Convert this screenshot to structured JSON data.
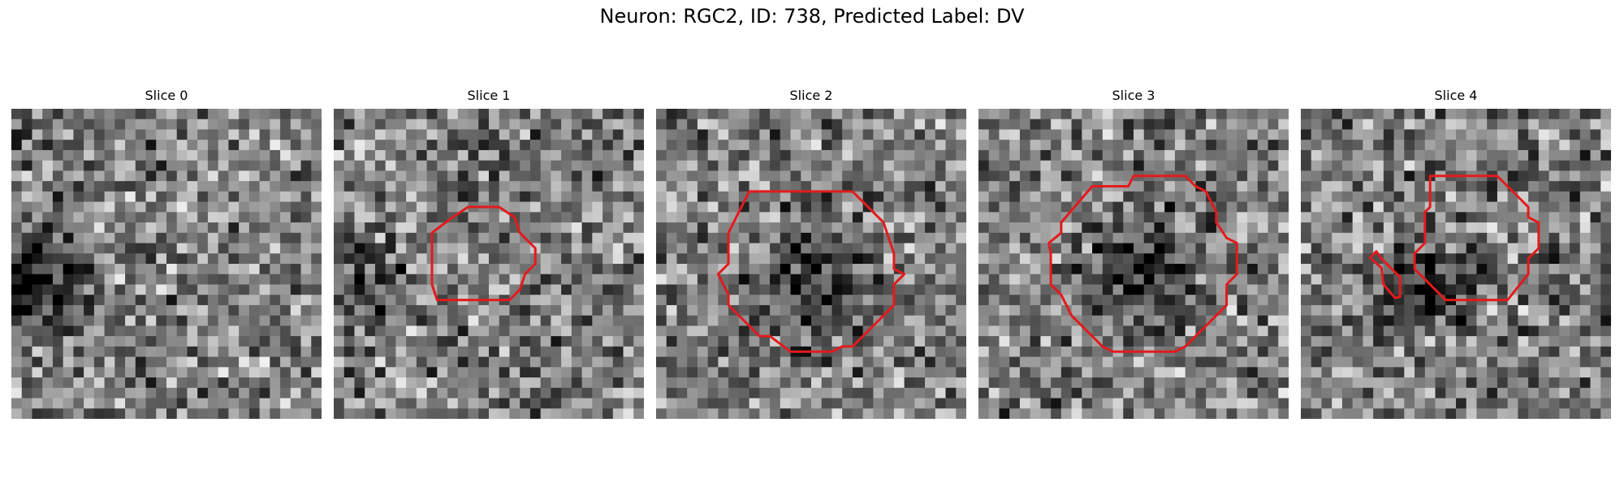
{
  "figure": {
    "title": "Neuron: RGC2, ID: 738, Predicted Label: DV",
    "outline_color": "#e41a1c",
    "grid_size": 30,
    "panels": [
      {
        "title": "Slice 0",
        "seed": 11,
        "dark_blob": {
          "cx": 2,
          "cy": 16,
          "r": 7,
          "depth": 0.45
        },
        "contours": []
      },
      {
        "title": "Slice 1",
        "seed": 23,
        "dark_blob": {
          "cx": 2,
          "cy": 16,
          "r": 6,
          "depth": 0.3
        },
        "contours": [
          [
            [
              11.5,
              10.5
            ],
            [
              13,
              9.5
            ],
            [
              16,
              9.5
            ],
            [
              17.5,
              10.5
            ],
            [
              18,
              12
            ],
            [
              19.5,
              13.5
            ],
            [
              19.5,
              15
            ],
            [
              18.5,
              16
            ],
            [
              18,
              17.5
            ],
            [
              17,
              18.5
            ],
            [
              10,
              18.5
            ],
            [
              9.5,
              17
            ],
            [
              9.5,
              12
            ]
          ]
        ]
      },
      {
        "title": "Slice 2",
        "seed": 37,
        "dark_blob": {
          "cx": 14.5,
          "cy": 16,
          "r": 8,
          "depth": 0.35
        },
        "contours": [
          [
            [
              9,
              8
            ],
            [
              19,
              8
            ],
            [
              20,
              9
            ],
            [
              22,
              11
            ],
            [
              23,
              14
            ],
            [
              23,
              15.5
            ],
            [
              24,
              16
            ],
            [
              23,
              17
            ],
            [
              23,
              19
            ],
            [
              19,
              23
            ],
            [
              18,
              23
            ],
            [
              17,
              23.5
            ],
            [
              13,
              23.5
            ],
            [
              11,
              22
            ],
            [
              10,
              22
            ],
            [
              8,
              20
            ],
            [
              7,
              19
            ],
            [
              7,
              18
            ],
            [
              6,
              16
            ],
            [
              7,
              15
            ],
            [
              7,
              12
            ]
          ]
        ]
      },
      {
        "title": "Slice 3",
        "seed": 51,
        "dark_blob": {
          "cx": 15.5,
          "cy": 15,
          "r": 8,
          "depth": 0.4
        },
        "contours": [
          [
            [
              11,
              7.5
            ],
            [
              14.5,
              7.5
            ],
            [
              15,
              6.5
            ],
            [
              20,
              6.5
            ],
            [
              21,
              7.5
            ],
            [
              22,
              8
            ],
            [
              23,
              10
            ],
            [
              23,
              11
            ],
            [
              24,
              12.5
            ],
            [
              25,
              13
            ],
            [
              25,
              16
            ],
            [
              24,
              17
            ],
            [
              24,
              19
            ],
            [
              20,
              23
            ],
            [
              19,
              23.5
            ],
            [
              13,
              23.5
            ],
            [
              12,
              23
            ],
            [
              10,
              21
            ],
            [
              9,
              20
            ],
            [
              8,
              18
            ],
            [
              7,
              17
            ],
            [
              7,
              14
            ],
            [
              6.8,
              13
            ],
            [
              8,
              12
            ],
            [
              8,
              11
            ]
          ]
        ]
      },
      {
        "title": "Slice 4",
        "seed": 67,
        "dark_blob": {
          "cx": 12,
          "cy": 16.5,
          "r": 6,
          "depth": 0.5
        },
        "contours": [
          [
            [
              12.5,
              6.5
            ],
            [
              19,
              6.5
            ],
            [
              22,
              9.5
            ],
            [
              22,
              10.5
            ],
            [
              23,
              11
            ],
            [
              23,
              13.5
            ],
            [
              22,
              14.5
            ],
            [
              22,
              16
            ],
            [
              20,
              18.5
            ],
            [
              14,
              18.5
            ],
            [
              12,
              16.5
            ],
            [
              11,
              15.5
            ],
            [
              11,
              14
            ],
            [
              12,
              13
            ],
            [
              12,
              10
            ],
            [
              12.5,
              9.5
            ]
          ],
          [
            [
              7.3,
              13.8
            ],
            [
              7.8,
              14.5
            ],
            [
              9.6,
              16.3
            ],
            [
              9.6,
              18.2
            ],
            [
              9.1,
              18.3
            ],
            [
              8,
              17
            ],
            [
              7.8,
              15.4
            ],
            [
              6.7,
              14.4
            ]
          ]
        ]
      }
    ]
  }
}
